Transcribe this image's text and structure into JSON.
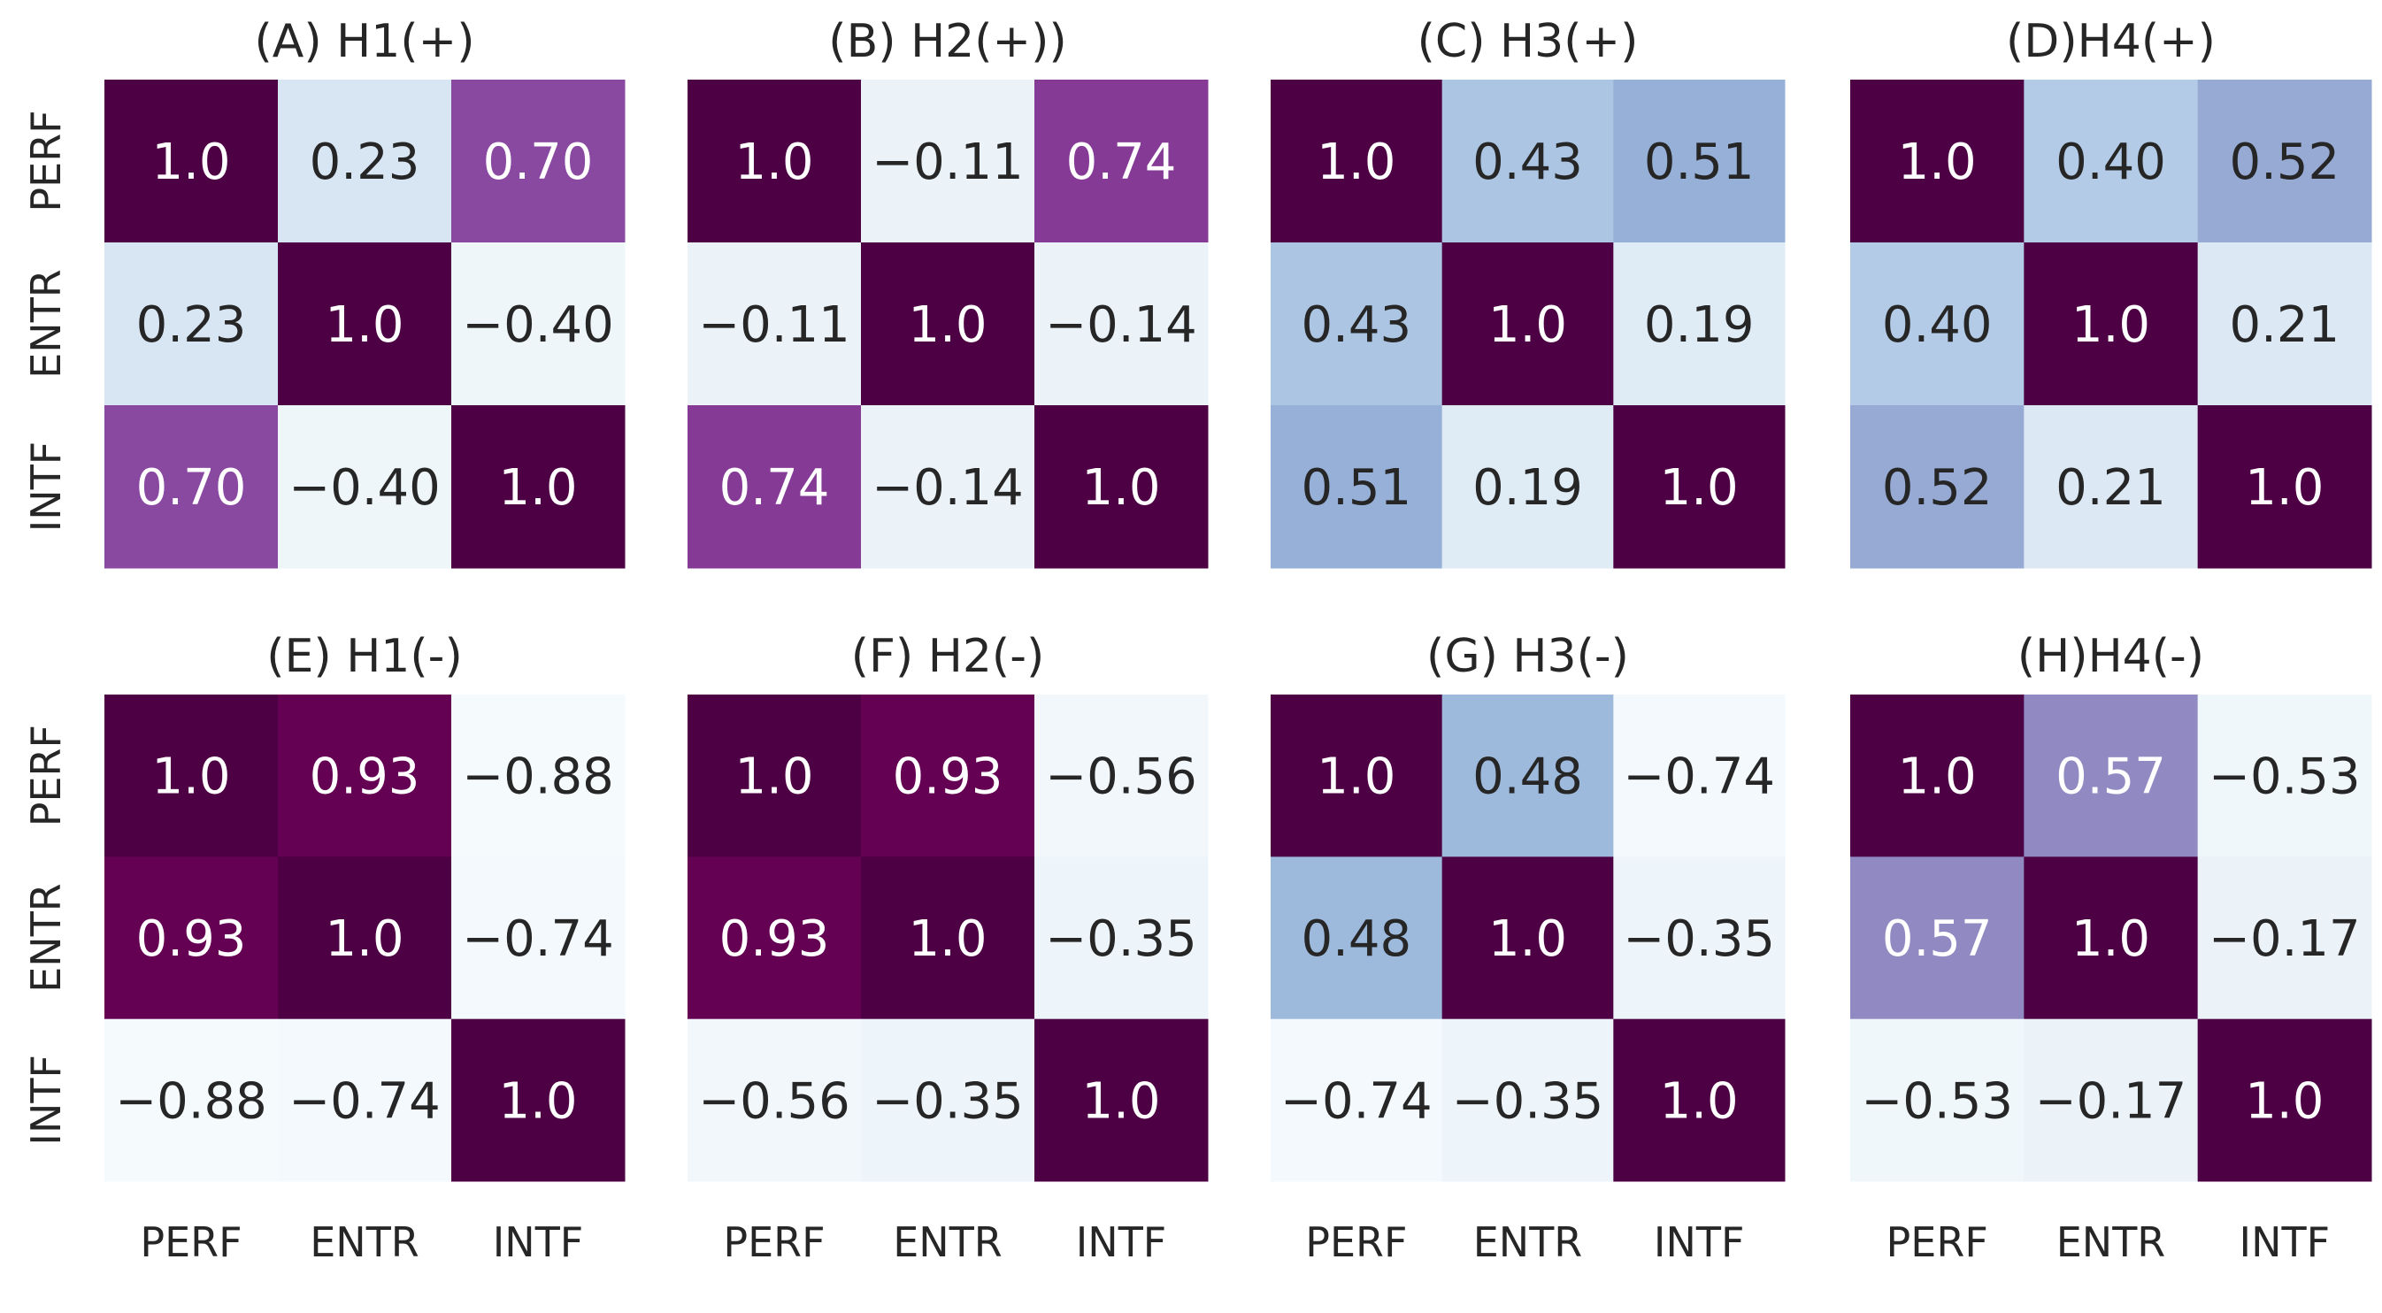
{
  "chart_data": {
    "type": "heatmap",
    "labels": [
      "PERF",
      "ENTR",
      "INTF"
    ],
    "grid": false,
    "colorbar": false,
    "colormap": "light-blue to dark purple (BuPu)",
    "panels": [
      {
        "title": "(A) H1(+)",
        "values": [
          [
            1.0,
            0.23,
            0.7
          ],
          [
            0.23,
            1.0,
            -0.4
          ],
          [
            0.7,
            -0.4,
            1.0
          ]
        ],
        "labels_text": [
          [
            "1.0",
            "0.23",
            "0.70"
          ],
          [
            "0.23",
            "1.0",
            "−0.40"
          ],
          [
            "0.70",
            "−0.40",
            "1.0"
          ]
        ]
      },
      {
        "title": "(B) H2(+))",
        "values": [
          [
            1.0,
            -0.11,
            0.74
          ],
          [
            -0.11,
            1.0,
            -0.14
          ],
          [
            0.74,
            -0.14,
            1.0
          ]
        ],
        "labels_text": [
          [
            "1.0",
            "−0.11",
            "0.74"
          ],
          [
            "−0.11",
            "1.0",
            "−0.14"
          ],
          [
            "0.74",
            "−0.14",
            "1.0"
          ]
        ]
      },
      {
        "title": "(C) H3(+)",
        "values": [
          [
            1.0,
            0.43,
            0.51
          ],
          [
            0.43,
            1.0,
            0.19
          ],
          [
            0.51,
            0.19,
            1.0
          ]
        ],
        "labels_text": [
          [
            "1.0",
            "0.43",
            "0.51"
          ],
          [
            "0.43",
            "1.0",
            "0.19"
          ],
          [
            "0.51",
            "0.19",
            "1.0"
          ]
        ]
      },
      {
        "title": "(D)H4(+)",
        "values": [
          [
            1.0,
            0.4,
            0.52
          ],
          [
            0.4,
            1.0,
            0.21
          ],
          [
            0.52,
            0.21,
            1.0
          ]
        ],
        "labels_text": [
          [
            "1.0",
            "0.40",
            "0.52"
          ],
          [
            "0.40",
            "1.0",
            "0.21"
          ],
          [
            "0.52",
            "0.21",
            "1.0"
          ]
        ]
      },
      {
        "title": "(E) H1(-)",
        "values": [
          [
            1.0,
            0.93,
            -0.88
          ],
          [
            0.93,
            1.0,
            -0.74
          ],
          [
            -0.88,
            -0.74,
            1.0
          ]
        ],
        "labels_text": [
          [
            "1.0",
            "0.93",
            "−0.88"
          ],
          [
            "0.93",
            "1.0",
            "−0.74"
          ],
          [
            "−0.88",
            "−0.74",
            "1.0"
          ]
        ]
      },
      {
        "title": "(F) H2(-)",
        "values": [
          [
            1.0,
            0.93,
            -0.56
          ],
          [
            0.93,
            1.0,
            -0.35
          ],
          [
            -0.56,
            -0.35,
            1.0
          ]
        ],
        "labels_text": [
          [
            "1.0",
            "0.93",
            "−0.56"
          ],
          [
            "0.93",
            "1.0",
            "−0.35"
          ],
          [
            "−0.56",
            "−0.35",
            "1.0"
          ]
        ]
      },
      {
        "title": "(G) H3(-)",
        "values": [
          [
            1.0,
            0.48,
            -0.74
          ],
          [
            0.48,
            1.0,
            -0.35
          ],
          [
            -0.74,
            -0.35,
            1.0
          ]
        ],
        "labels_text": [
          [
            "1.0",
            "0.48",
            "−0.74"
          ],
          [
            "0.48",
            "1.0",
            "−0.35"
          ],
          [
            "−0.74",
            "−0.35",
            "1.0"
          ]
        ]
      },
      {
        "title": "(H)H4(-)",
        "values": [
          [
            1.0,
            0.57,
            -0.53
          ],
          [
            0.57,
            1.0,
            -0.17
          ],
          [
            -0.53,
            -0.17,
            1.0
          ]
        ],
        "labels_text": [
          [
            "1.0",
            "0.57",
            "−0.53"
          ],
          [
            "0.57",
            "1.0",
            "−0.17"
          ],
          [
            "−0.53",
            "−0.17",
            "1.0"
          ]
        ]
      }
    ]
  }
}
